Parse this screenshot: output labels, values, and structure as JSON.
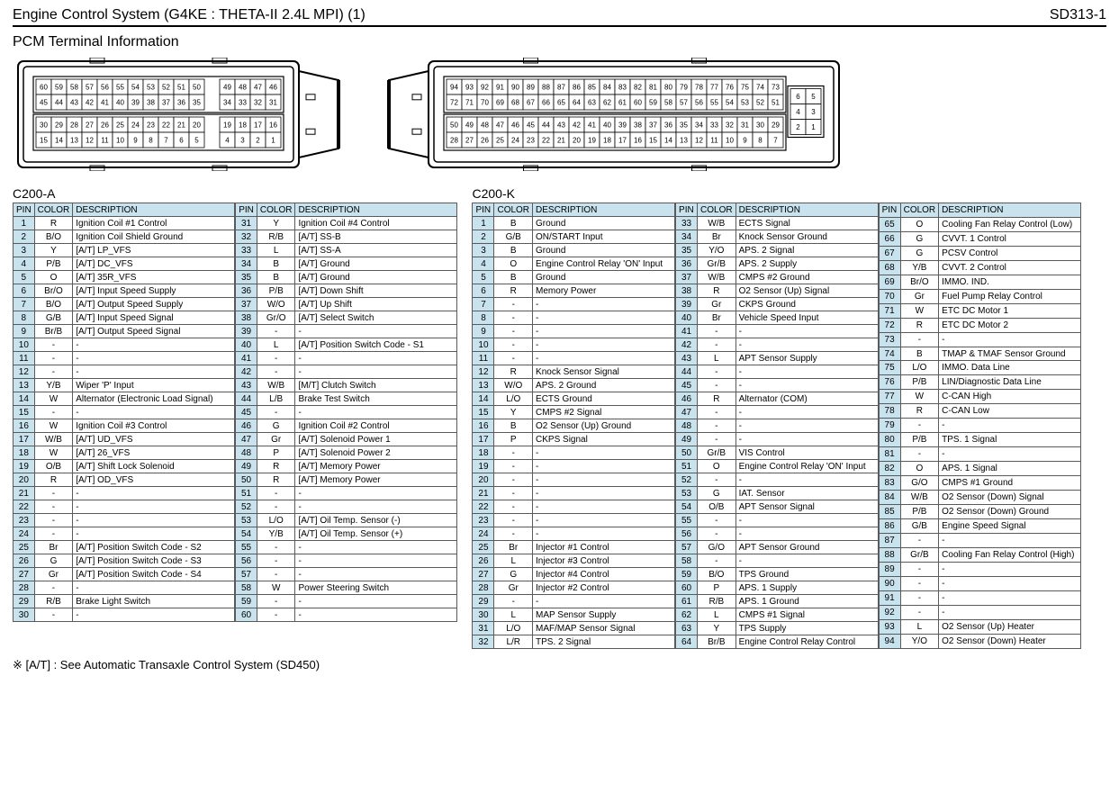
{
  "header": {
    "title": "Engine Control System (G4KE : THETA-II 2.4L MPI) (1)",
    "code": "SD313-1"
  },
  "section_title": "PCM Terminal Information",
  "footnote": "※ [A/T] : See Automatic Transaxle Control System    (SD450)",
  "colors": {
    "header_bg": "#c9e3ee",
    "border": "#5a5a5a",
    "page_bg": "#ffffff"
  },
  "connectors": {
    "A": {
      "label": "C200-A",
      "diagram": {
        "rows": [
          {
            "start": 60,
            "end": 46,
            "gaps_after": [
              50
            ]
          },
          {
            "start": 45,
            "end": 31,
            "gaps_after": [
              35
            ]
          },
          {
            "start": 30,
            "end": 16,
            "gaps_after": [
              20
            ]
          },
          {
            "start": 15,
            "end": 1,
            "gaps_after": [
              5
            ]
          }
        ],
        "tab_side": "right"
      },
      "col_widths": {
        "pin": 22,
        "color": 40,
        "desc": 180
      },
      "headers": [
        "PIN",
        "COLOR",
        "DESCRIPTION"
      ],
      "subtables": [
        [
          {
            "pin": 1,
            "color": "R",
            "desc": "Ignition Coil #1 Control"
          },
          {
            "pin": 2,
            "color": "B/O",
            "desc": "Ignition Coil Shield Ground"
          },
          {
            "pin": 3,
            "color": "Y",
            "desc": "[A/T] LP_VFS"
          },
          {
            "pin": 4,
            "color": "P/B",
            "desc": "[A/T] DC_VFS"
          },
          {
            "pin": 5,
            "color": "O",
            "desc": "[A/T] 35R_VFS"
          },
          {
            "pin": 6,
            "color": "Br/O",
            "desc": "[A/T] Input Speed Supply"
          },
          {
            "pin": 7,
            "color": "B/O",
            "desc": "[A/T] Output Speed Supply"
          },
          {
            "pin": 8,
            "color": "G/B",
            "desc": "[A/T] Input Speed Signal"
          },
          {
            "pin": 9,
            "color": "Br/B",
            "desc": "[A/T] Output Speed Signal"
          },
          {
            "pin": 10,
            "color": "-",
            "desc": "-"
          },
          {
            "pin": 11,
            "color": "-",
            "desc": "-"
          },
          {
            "pin": 12,
            "color": "-",
            "desc": "-"
          },
          {
            "pin": 13,
            "color": "Y/B",
            "desc": "Wiper 'P' Input"
          },
          {
            "pin": 14,
            "color": "W",
            "desc": "Alternator (Electronic Load Signal)"
          },
          {
            "pin": 15,
            "color": "-",
            "desc": "-"
          },
          {
            "pin": 16,
            "color": "W",
            "desc": "Ignition Coil #3 Control"
          },
          {
            "pin": 17,
            "color": "W/B",
            "desc": "[A/T] UD_VFS"
          },
          {
            "pin": 18,
            "color": "W",
            "desc": "[A/T] 26_VFS"
          },
          {
            "pin": 19,
            "color": "O/B",
            "desc": "[A/T] Shift Lock Solenoid"
          },
          {
            "pin": 20,
            "color": "R",
            "desc": "[A/T] OD_VFS"
          },
          {
            "pin": 21,
            "color": "-",
            "desc": "-"
          },
          {
            "pin": 22,
            "color": "-",
            "desc": "-"
          },
          {
            "pin": 23,
            "color": "-",
            "desc": "-"
          },
          {
            "pin": 24,
            "color": "-",
            "desc": "-"
          },
          {
            "pin": 25,
            "color": "Br",
            "desc": "[A/T] Position Switch Code - S2"
          },
          {
            "pin": 26,
            "color": "G",
            "desc": "[A/T] Position Switch Code - S3"
          },
          {
            "pin": 27,
            "color": "Gr",
            "desc": "[A/T] Position Switch Code - S4"
          },
          {
            "pin": 28,
            "color": "-",
            "desc": "-"
          },
          {
            "pin": 29,
            "color": "R/B",
            "desc": "Brake Light Switch"
          },
          {
            "pin": 30,
            "color": "-",
            "desc": "-"
          }
        ],
        [
          {
            "pin": 31,
            "color": "Y",
            "desc": "Ignition Coil #4 Control"
          },
          {
            "pin": 32,
            "color": "R/B",
            "desc": "[A/T] SS-B"
          },
          {
            "pin": 33,
            "color": "L",
            "desc": "[A/T] SS-A"
          },
          {
            "pin": 34,
            "color": "B",
            "desc": "[A/T] Ground"
          },
          {
            "pin": 35,
            "color": "B",
            "desc": "[A/T] Ground"
          },
          {
            "pin": 36,
            "color": "P/B",
            "desc": "[A/T] Down Shift"
          },
          {
            "pin": 37,
            "color": "W/O",
            "desc": "[A/T] Up Shift"
          },
          {
            "pin": 38,
            "color": "Gr/O",
            "desc": "[A/T] Select Switch"
          },
          {
            "pin": 39,
            "color": "-",
            "desc": "-"
          },
          {
            "pin": 40,
            "color": "L",
            "desc": "[A/T] Position Switch Code - S1"
          },
          {
            "pin": 41,
            "color": "-",
            "desc": "-"
          },
          {
            "pin": 42,
            "color": "-",
            "desc": "-"
          },
          {
            "pin": 43,
            "color": "W/B",
            "desc": "[M/T] Clutch Switch"
          },
          {
            "pin": 44,
            "color": "L/B",
            "desc": "Brake Test Switch"
          },
          {
            "pin": 45,
            "color": "-",
            "desc": "-"
          },
          {
            "pin": 46,
            "color": "G",
            "desc": "Ignition Coil #2 Control"
          },
          {
            "pin": 47,
            "color": "Gr",
            "desc": "[A/T] Solenoid Power 1"
          },
          {
            "pin": 48,
            "color": "P",
            "desc": "[A/T] Solenoid Power 2"
          },
          {
            "pin": 49,
            "color": "R",
            "desc": "[A/T] Memory Power"
          },
          {
            "pin": 50,
            "color": "R",
            "desc": "[A/T] Memory Power"
          },
          {
            "pin": 51,
            "color": "-",
            "desc": "-"
          },
          {
            "pin": 52,
            "color": "-",
            "desc": "-"
          },
          {
            "pin": 53,
            "color": "L/O",
            "desc": "[A/T] Oil Temp. Sensor (-)"
          },
          {
            "pin": 54,
            "color": "Y/B",
            "desc": "[A/T] Oil Temp. Sensor (+)"
          },
          {
            "pin": 55,
            "color": "-",
            "desc": "-"
          },
          {
            "pin": 56,
            "color": "-",
            "desc": "-"
          },
          {
            "pin": 57,
            "color": "-",
            "desc": "-"
          },
          {
            "pin": 58,
            "color": "W",
            "desc": "Power Steering Switch"
          },
          {
            "pin": 59,
            "color": "-",
            "desc": "-"
          },
          {
            "pin": 60,
            "color": "-",
            "desc": "-"
          }
        ]
      ]
    },
    "K": {
      "label": "C200-K",
      "diagram": {
        "rows": [
          {
            "start": 94,
            "end": 73
          },
          {
            "start": 72,
            "end": 51
          },
          {
            "start": 50,
            "end": 29
          },
          {
            "start": 28,
            "end": 7
          }
        ],
        "side_rows": [
          [
            6,
            5
          ],
          [
            4,
            3
          ],
          [
            2,
            1
          ]
        ],
        "tab_side": "left"
      },
      "col_widths": {
        "pin": 24,
        "color": 42,
        "desc": 158
      },
      "headers": [
        "PIN",
        "COLOR",
        "DESCRIPTION"
      ],
      "subtables": [
        [
          {
            "pin": 1,
            "color": "B",
            "desc": "Ground"
          },
          {
            "pin": 2,
            "color": "G/B",
            "desc": "ON/START Input"
          },
          {
            "pin": 3,
            "color": "B",
            "desc": "Ground"
          },
          {
            "pin": 4,
            "color": "O",
            "desc": "Engine Control Relay 'ON' Input"
          },
          {
            "pin": 5,
            "color": "B",
            "desc": "Ground"
          },
          {
            "pin": 6,
            "color": "R",
            "desc": "Memory Power"
          },
          {
            "pin": 7,
            "color": "-",
            "desc": "-"
          },
          {
            "pin": 8,
            "color": "-",
            "desc": "-"
          },
          {
            "pin": 9,
            "color": "-",
            "desc": "-"
          },
          {
            "pin": 10,
            "color": "-",
            "desc": "-"
          },
          {
            "pin": 11,
            "color": "-",
            "desc": "-"
          },
          {
            "pin": 12,
            "color": "R",
            "desc": "Knock Sensor Signal"
          },
          {
            "pin": 13,
            "color": "W/O",
            "desc": "APS. 2 Ground"
          },
          {
            "pin": 14,
            "color": "L/O",
            "desc": "ECTS Ground"
          },
          {
            "pin": 15,
            "color": "Y",
            "desc": "CMPS #2 Signal"
          },
          {
            "pin": 16,
            "color": "B",
            "desc": "O2 Sensor (Up) Ground"
          },
          {
            "pin": 17,
            "color": "P",
            "desc": "CKPS Signal"
          },
          {
            "pin": 18,
            "color": "-",
            "desc": "-"
          },
          {
            "pin": 19,
            "color": "-",
            "desc": "-"
          },
          {
            "pin": 20,
            "color": "-",
            "desc": "-"
          },
          {
            "pin": 21,
            "color": "-",
            "desc": "-"
          },
          {
            "pin": 22,
            "color": "-",
            "desc": "-"
          },
          {
            "pin": 23,
            "color": "-",
            "desc": "-"
          },
          {
            "pin": 24,
            "color": "-",
            "desc": "-"
          },
          {
            "pin": 25,
            "color": "Br",
            "desc": "Injector #1 Control"
          },
          {
            "pin": 26,
            "color": "L",
            "desc": "Injector #3 Control"
          },
          {
            "pin": 27,
            "color": "G",
            "desc": "Injector #4 Control"
          },
          {
            "pin": 28,
            "color": "Gr",
            "desc": "Injector #2 Control"
          },
          {
            "pin": 29,
            "color": "-",
            "desc": "-"
          },
          {
            "pin": 30,
            "color": "L",
            "desc": "MAP Sensor Supply"
          },
          {
            "pin": 31,
            "color": "L/O",
            "desc": "MAF/MAP Sensor Signal"
          },
          {
            "pin": 32,
            "color": "L/R",
            "desc": "TPS. 2 Signal"
          }
        ],
        [
          {
            "pin": 33,
            "color": "W/B",
            "desc": "ECTS Signal"
          },
          {
            "pin": 34,
            "color": "Br",
            "desc": "Knock Sensor Ground"
          },
          {
            "pin": 35,
            "color": "Y/O",
            "desc": "APS. 2 Signal"
          },
          {
            "pin": 36,
            "color": "Gr/B",
            "desc": "APS. 2 Supply"
          },
          {
            "pin": 37,
            "color": "W/B",
            "desc": "CMPS #2 Ground"
          },
          {
            "pin": 38,
            "color": "R",
            "desc": "O2 Sensor (Up) Signal"
          },
          {
            "pin": 39,
            "color": "Gr",
            "desc": "CKPS Ground"
          },
          {
            "pin": 40,
            "color": "Br",
            "desc": "Vehicle Speed Input"
          },
          {
            "pin": 41,
            "color": "-",
            "desc": "-"
          },
          {
            "pin": 42,
            "color": "-",
            "desc": "-"
          },
          {
            "pin": 43,
            "color": "L",
            "desc": "APT Sensor Supply"
          },
          {
            "pin": 44,
            "color": "-",
            "desc": "-"
          },
          {
            "pin": 45,
            "color": "-",
            "desc": "-"
          },
          {
            "pin": 46,
            "color": "R",
            "desc": "Alternator (COM)"
          },
          {
            "pin": 47,
            "color": "-",
            "desc": "-"
          },
          {
            "pin": 48,
            "color": "-",
            "desc": "-"
          },
          {
            "pin": 49,
            "color": "-",
            "desc": "-"
          },
          {
            "pin": 50,
            "color": "Gr/B",
            "desc": "VIS Control"
          },
          {
            "pin": 51,
            "color": "O",
            "desc": "Engine Control Relay 'ON' Input"
          },
          {
            "pin": 52,
            "color": "-",
            "desc": "-"
          },
          {
            "pin": 53,
            "color": "G",
            "desc": "IAT. Sensor"
          },
          {
            "pin": 54,
            "color": "O/B",
            "desc": "APT Sensor Signal"
          },
          {
            "pin": 55,
            "color": "-",
            "desc": "-"
          },
          {
            "pin": 56,
            "color": "-",
            "desc": "-"
          },
          {
            "pin": 57,
            "color": "G/O",
            "desc": "APT Sensor Ground"
          },
          {
            "pin": 58,
            "color": "-",
            "desc": "-"
          },
          {
            "pin": 59,
            "color": "B/O",
            "desc": "TPS Ground"
          },
          {
            "pin": 60,
            "color": "P",
            "desc": "APS. 1 Supply"
          },
          {
            "pin": 61,
            "color": "R/B",
            "desc": "APS. 1 Ground"
          },
          {
            "pin": 62,
            "color": "L",
            "desc": "CMPS #1 Signal"
          },
          {
            "pin": 63,
            "color": "Y",
            "desc": "TPS Supply"
          },
          {
            "pin": 64,
            "color": "Br/B",
            "desc": "Engine Control Relay Control"
          }
        ],
        [
          {
            "pin": 65,
            "color": "O",
            "desc": "Cooling Fan Relay Control (Low)"
          },
          {
            "pin": 66,
            "color": "G",
            "desc": "CVVT. 1 Control"
          },
          {
            "pin": 67,
            "color": "G",
            "desc": "PCSV Control"
          },
          {
            "pin": 68,
            "color": "Y/B",
            "desc": "CVVT. 2 Control"
          },
          {
            "pin": 69,
            "color": "Br/O",
            "desc": "IMMO. IND."
          },
          {
            "pin": 70,
            "color": "Gr",
            "desc": "Fuel Pump Relay Control"
          },
          {
            "pin": 71,
            "color": "W",
            "desc": "ETC DC Motor 1"
          },
          {
            "pin": 72,
            "color": "R",
            "desc": "ETC DC Motor 2"
          },
          {
            "pin": 73,
            "color": "-",
            "desc": "-"
          },
          {
            "pin": 74,
            "color": "B",
            "desc": "TMAP & TMAF Sensor Ground"
          },
          {
            "pin": 75,
            "color": "L/O",
            "desc": "IMMO. Data Line"
          },
          {
            "pin": 76,
            "color": "P/B",
            "desc": "LIN/Diagnostic Data Line"
          },
          {
            "pin": 77,
            "color": "W",
            "desc": "C-CAN High"
          },
          {
            "pin": 78,
            "color": "R",
            "desc": "C-CAN Low"
          },
          {
            "pin": 79,
            "color": "-",
            "desc": "-"
          },
          {
            "pin": 80,
            "color": "P/B",
            "desc": "TPS. 1 Signal"
          },
          {
            "pin": 81,
            "color": "-",
            "desc": "-"
          },
          {
            "pin": 82,
            "color": "O",
            "desc": "APS. 1 Signal"
          },
          {
            "pin": 83,
            "color": "G/O",
            "desc": "CMPS #1 Ground"
          },
          {
            "pin": 84,
            "color": "W/B",
            "desc": "O2 Sensor (Down) Signal"
          },
          {
            "pin": 85,
            "color": "P/B",
            "desc": "O2 Sensor (Down) Ground"
          },
          {
            "pin": 86,
            "color": "G/B",
            "desc": "Engine Speed Signal"
          },
          {
            "pin": 87,
            "color": "-",
            "desc": "-"
          },
          {
            "pin": 88,
            "color": "Gr/B",
            "desc": "Cooling Fan Relay Control (High)"
          },
          {
            "pin": 89,
            "color": "-",
            "desc": "-"
          },
          {
            "pin": 90,
            "color": "-",
            "desc": "-"
          },
          {
            "pin": 91,
            "color": "-",
            "desc": "-"
          },
          {
            "pin": 92,
            "color": "-",
            "desc": "-"
          },
          {
            "pin": 93,
            "color": "L",
            "desc": "O2 Sensor (Up) Heater"
          },
          {
            "pin": 94,
            "color": "Y/O",
            "desc": "O2 Sensor (Down) Heater"
          }
        ]
      ]
    }
  }
}
